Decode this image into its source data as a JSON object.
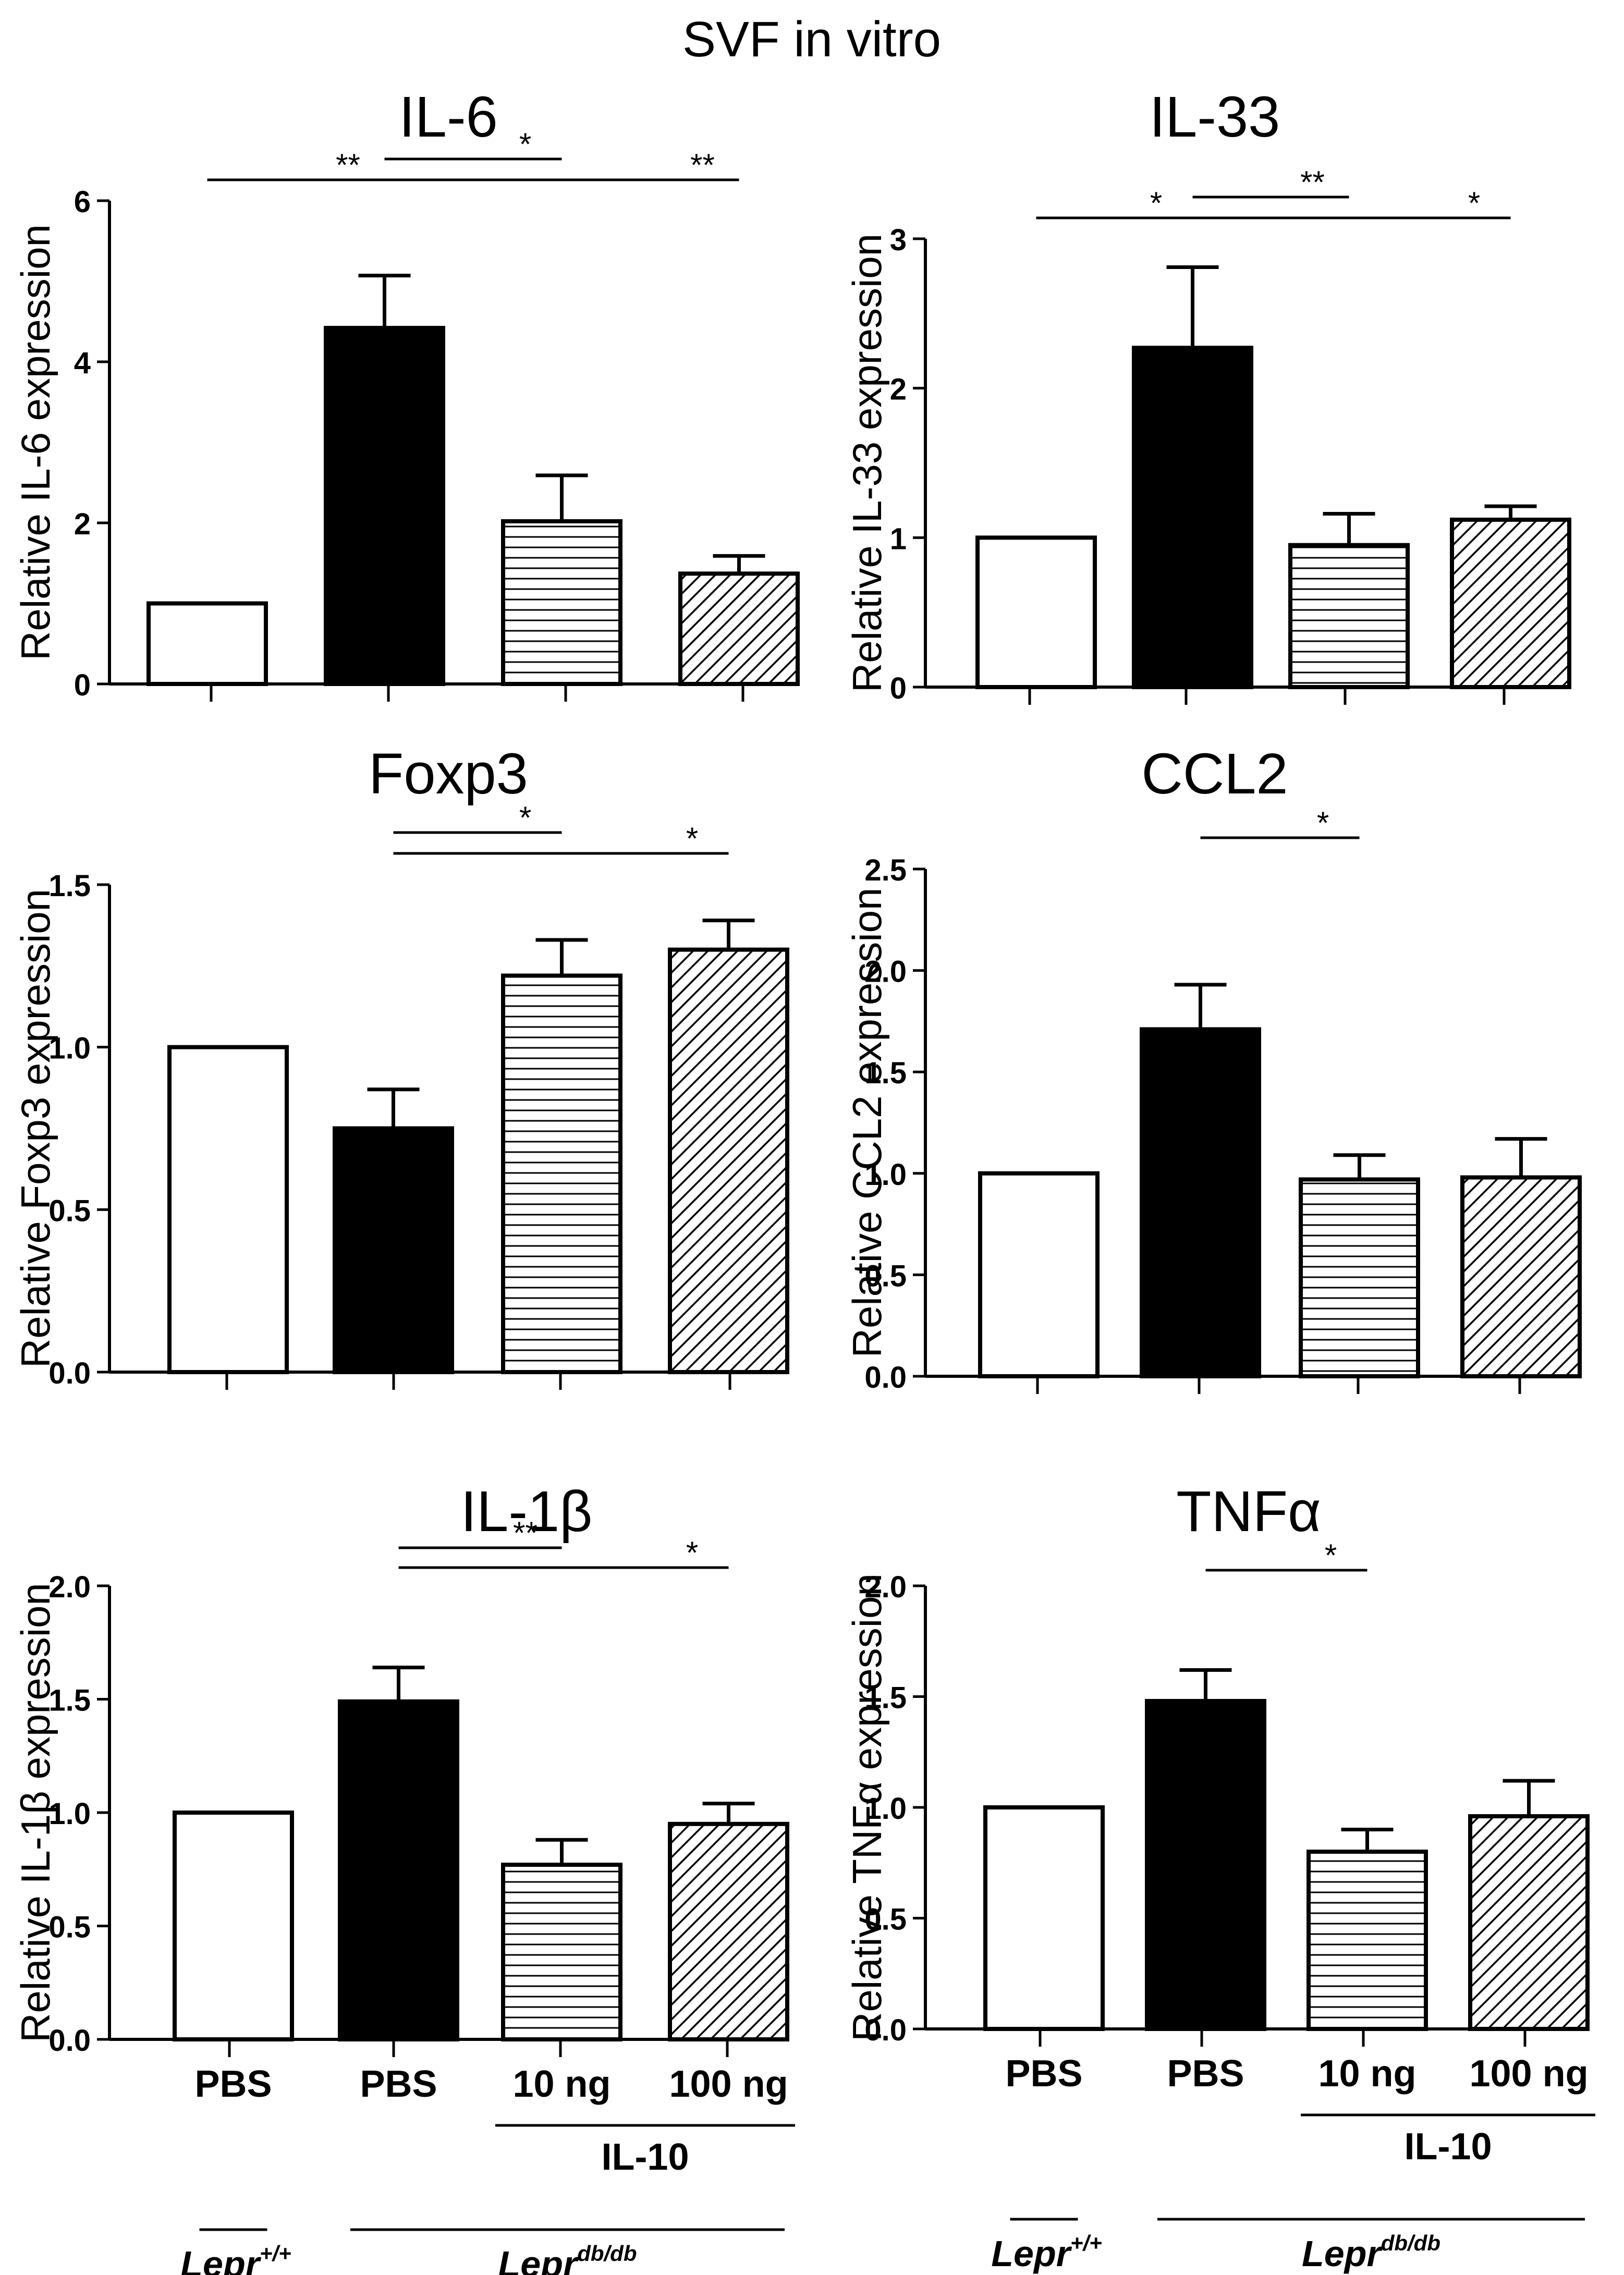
{
  "figure_title": "SVF in vitro",
  "x_labels": {
    "categories": [
      "PBS",
      "PBS",
      "10 ng",
      "100 ng"
    ],
    "treatment_label": "IL-10",
    "group_control": "Lepr",
    "group_control_sup": "+/+",
    "group_db": "Lepr",
    "group_db_sup": "db/db"
  },
  "colors": {
    "bar_stroke": "#000000",
    "pbs_db_fill": "#000000",
    "control_fill": "#ffffff"
  },
  "chart_data": [
    {
      "type": "bar",
      "title": "IL-6",
      "ylabel": "Relative IL-6 expression",
      "categories": [
        "PBS",
        "PBS",
        "10 ng",
        "100 ng"
      ],
      "values": [
        1.0,
        4.42,
        2.02,
        1.37
      ],
      "errors": [
        0,
        0.65,
        0.57,
        0.22
      ],
      "patterns": [
        "white",
        "black",
        "horizontal",
        "diagonal"
      ],
      "ylim": [
        0,
        6
      ],
      "yticks": [
        "0",
        "2",
        "4",
        "6"
      ],
      "sig": [
        {
          "from": 0,
          "to": 1,
          "label": "**",
          "level": 0
        },
        {
          "from": 1,
          "to": 2,
          "label": "*",
          "level": 1
        },
        {
          "from": 1,
          "to": 3,
          "label": "**",
          "level": 0
        }
      ]
    },
    {
      "type": "bar",
      "title": "IL-33",
      "ylabel": "Relative IL-33 expression",
      "categories": [
        "PBS",
        "PBS",
        "10 ng",
        "100 ng"
      ],
      "values": [
        1.0,
        2.27,
        0.95,
        1.12
      ],
      "errors": [
        0,
        0.54,
        0.21,
        0.09
      ],
      "patterns": [
        "white",
        "black",
        "horizontal",
        "diagonal"
      ],
      "ylim": [
        0,
        3
      ],
      "yticks": [
        "0",
        "1",
        "2",
        "3"
      ],
      "sig": [
        {
          "from": 0,
          "to": 1,
          "label": "*",
          "level": 0
        },
        {
          "from": 1,
          "to": 2,
          "label": "**",
          "level": 1
        },
        {
          "from": 1,
          "to": 3,
          "label": "*",
          "level": 0
        }
      ]
    },
    {
      "type": "bar",
      "title": "Foxp3",
      "ylabel": "Relative Foxp3 expression",
      "categories": [
        "PBS",
        "PBS",
        "10 ng",
        "100 ng"
      ],
      "values": [
        1.0,
        0.75,
        1.22,
        1.3
      ],
      "errors": [
        0,
        0.12,
        0.11,
        0.09
      ],
      "patterns": [
        "white",
        "black",
        "horizontal",
        "diagonal"
      ],
      "ylim": [
        0,
        1.5
      ],
      "yticks": [
        "0.0",
        "0.5",
        "1.0",
        "1.5"
      ],
      "sig": [
        {
          "from": 1,
          "to": 2,
          "label": "*",
          "level": 1
        },
        {
          "from": 1,
          "to": 3,
          "label": "*",
          "level": 0
        }
      ]
    },
    {
      "type": "bar",
      "title": "CCL2",
      "ylabel": "Relative CCL2 expression",
      "categories": [
        "PBS",
        "PBS",
        "10 ng",
        "100 ng"
      ],
      "values": [
        1.0,
        1.71,
        0.97,
        0.98
      ],
      "errors": [
        0,
        0.22,
        0.12,
        0.19
      ],
      "patterns": [
        "white",
        "black",
        "horizontal",
        "diagonal"
      ],
      "ylim": [
        0,
        2.5
      ],
      "yticks": [
        "0.0",
        "0.5",
        "1.0",
        "1.5",
        "2.0",
        "2.5"
      ],
      "sig": [
        {
          "from": 1,
          "to": 2,
          "label": "*",
          "level": 0
        }
      ]
    },
    {
      "type": "bar",
      "title": "IL-1β",
      "ylabel": "Relative IL-1β expression",
      "categories": [
        "PBS",
        "PBS",
        "10 ng",
        "100 ng"
      ],
      "values": [
        1.0,
        1.49,
        0.77,
        0.95
      ],
      "errors": [
        0,
        0.15,
        0.11,
        0.09
      ],
      "patterns": [
        "white",
        "black",
        "horizontal",
        "diagonal"
      ],
      "ylim": [
        0,
        2.0
      ],
      "yticks": [
        "0.0",
        "0.5",
        "1.0",
        "1.5",
        "2.0"
      ],
      "sig": [
        {
          "from": 1,
          "to": 2,
          "label": "**",
          "level": 1
        },
        {
          "from": 1,
          "to": 3,
          "label": "*",
          "level": 0
        }
      ]
    },
    {
      "type": "bar",
      "title": "TNFα",
      "ylabel": "Relative TNFα expression",
      "categories": [
        "PBS",
        "PBS",
        "10 ng",
        "100 ng"
      ],
      "values": [
        1.0,
        1.48,
        0.8,
        0.96
      ],
      "errors": [
        0,
        0.14,
        0.1,
        0.16
      ],
      "patterns": [
        "white",
        "black",
        "horizontal",
        "diagonal"
      ],
      "ylim": [
        0,
        2.0
      ],
      "yticks": [
        "0.0",
        "0.5",
        "1.0",
        "1.5",
        "2.0"
      ],
      "sig": [
        {
          "from": 1,
          "to": 2,
          "label": "*",
          "level": 0
        }
      ]
    }
  ]
}
